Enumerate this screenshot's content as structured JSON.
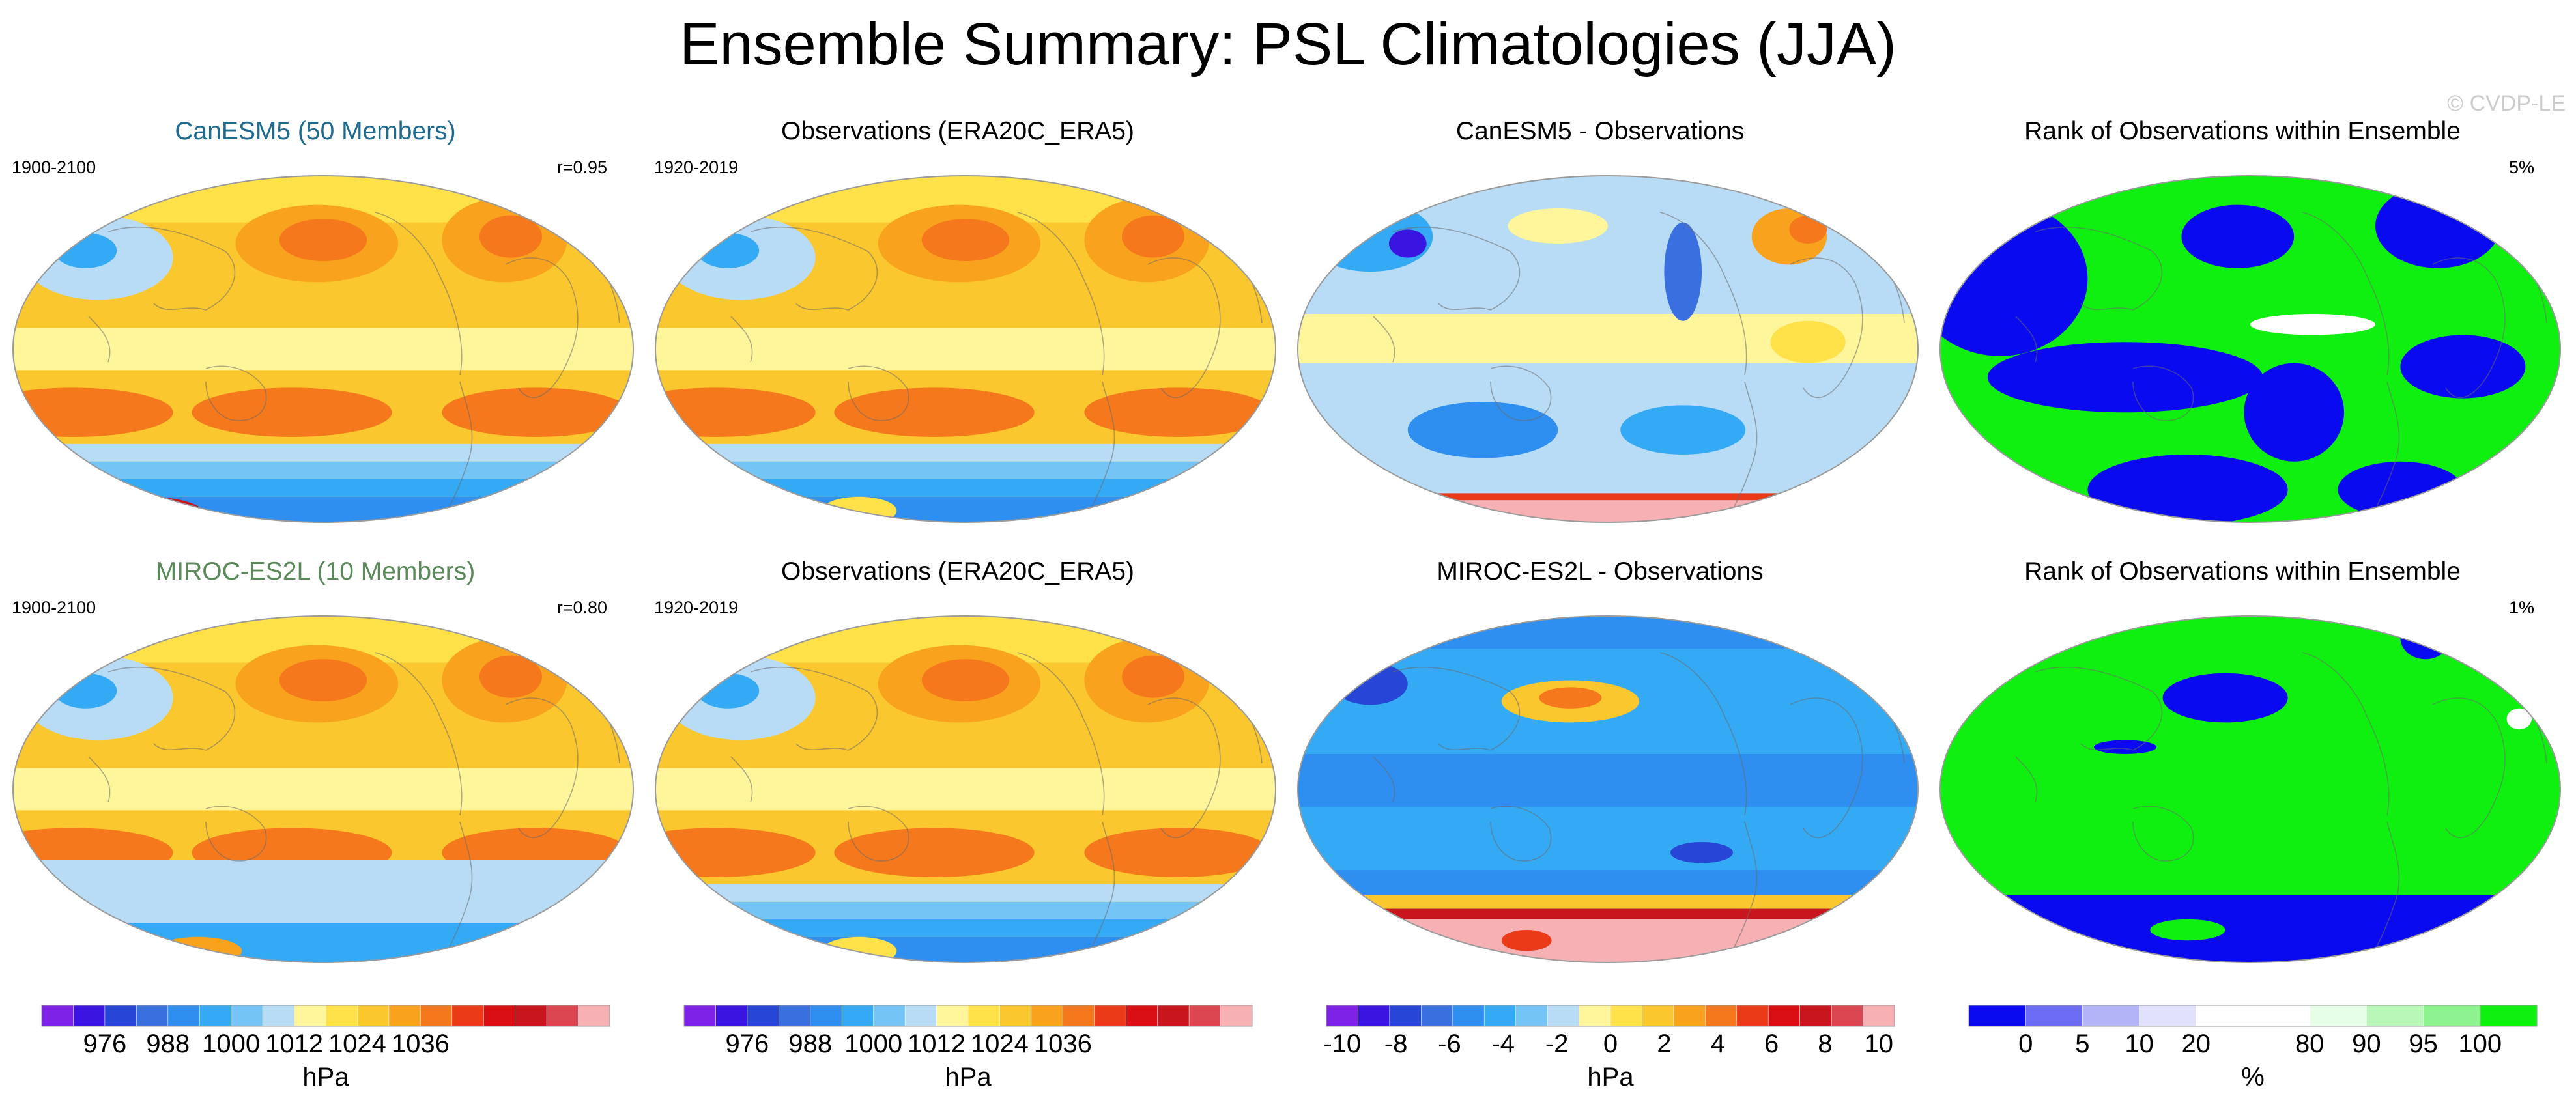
{
  "figure_title": "Ensemble Summary: PSL Climatologies (JJA)",
  "watermark": "© CVDP-LE",
  "colors": {
    "abs": [
      "#7d22e6",
      "#3a14e0",
      "#2846d6",
      "#3a6fe0",
      "#2e8ff0",
      "#34aaf5",
      "#74c4f5",
      "#b8dcf5",
      "#fff59a",
      "#ffe14a",
      "#fbc72e",
      "#f9a21e",
      "#f5781c",
      "#ea3a18",
      "#d90f14",
      "#c8151e",
      "#dc4650",
      "#f7b0b4"
    ],
    "diff": [
      "#7d22e6",
      "#3a14e0",
      "#2846d6",
      "#3a6fe0",
      "#2e8ff0",
      "#34aaf5",
      "#74c4f5",
      "#b8dcf5",
      "#fff59a",
      "#ffe14a",
      "#fbc72e",
      "#f9a21e",
      "#f5781c",
      "#ea3a18",
      "#d90f14",
      "#c8151e",
      "#dc4650",
      "#f7b0b4"
    ],
    "rank": [
      "#0a0af0",
      "#6b6bf5",
      "#b3b3f7",
      "#e1e1fb",
      "#ffffff",
      "#ffffff",
      "#e6fde6",
      "#b9f7b9",
      "#8ef38e",
      "#10f010"
    ]
  },
  "rows": [
    {
      "panels": [
        {
          "title": "CanESM5 (50 Members)",
          "title_color": "#1e6b8f",
          "left": "1900-2100",
          "right": "r=0.95",
          "kind": "model_abs"
        },
        {
          "title": "Observations (ERA20C_ERA5)",
          "title_color": "#000000",
          "left": "1920-2019",
          "right": "",
          "kind": "obs_abs"
        },
        {
          "title": "CanESM5 - Observations",
          "title_color": "#000000",
          "left": "",
          "right": "",
          "kind": "diff_a"
        },
        {
          "title": "Rank of Observations within Ensemble",
          "title_color": "#000000",
          "left": "",
          "right": "5%",
          "kind": "rank_a"
        }
      ]
    },
    {
      "panels": [
        {
          "title": "MIROC-ES2L (10 Members)",
          "title_color": "#5a8a5a",
          "left": "1900-2100",
          "right": "r=0.80",
          "kind": "model_abs2"
        },
        {
          "title": "Observations (ERA20C_ERA5)",
          "title_color": "#000000",
          "left": "1920-2019",
          "right": "",
          "kind": "obs_abs"
        },
        {
          "title": "MIROC-ES2L - Observations",
          "title_color": "#000000",
          "left": "",
          "right": "",
          "kind": "diff_b"
        },
        {
          "title": "Rank of Observations within Ensemble",
          "title_color": "#000000",
          "left": "",
          "right": "1%",
          "kind": "rank_b"
        }
      ]
    }
  ],
  "colorbars": [
    {
      "unit": "hPa",
      "labels": [
        "976",
        "988",
        "1000",
        "1012",
        "1024",
        "1036"
      ],
      "palette": "abs"
    },
    {
      "unit": "hPa",
      "labels": [
        "976",
        "988",
        "1000",
        "1012",
        "1024",
        "1036"
      ],
      "palette": "abs"
    },
    {
      "unit": "hPa",
      "labels": [
        "-10",
        "-8",
        "-6",
        "-4",
        "-2",
        "0",
        "2",
        "4",
        "6",
        "8",
        "10"
      ],
      "palette": "diff"
    },
    {
      "unit": "%",
      "labels": [
        "0",
        "5",
        "10",
        "20",
        "80",
        "90",
        "95",
        "100"
      ],
      "palette": "rank"
    }
  ],
  "chart_data": [
    {
      "type": "heatmap",
      "title": "CanESM5 (50 Members)",
      "period": "1900-2100",
      "pattern_correlation": 0.95,
      "unit": "hPa",
      "levels": [
        976,
        988,
        1000,
        1012,
        1024,
        1036
      ]
    },
    {
      "type": "heatmap",
      "title": "Observations (ERA20C_ERA5)",
      "period": "1920-2019",
      "unit": "hPa",
      "levels": [
        976,
        988,
        1000,
        1012,
        1024,
        1036
      ]
    },
    {
      "type": "heatmap",
      "title": "CanESM5 - Observations",
      "unit": "hPa",
      "levels": [
        -10,
        -8,
        -6,
        -4,
        -2,
        0,
        2,
        4,
        6,
        8,
        10
      ]
    },
    {
      "type": "heatmap",
      "title": "Rank of Observations within Ensemble",
      "unit": "%",
      "area_fraction_label": "5%",
      "levels": [
        0,
        5,
        10,
        20,
        80,
        90,
        95,
        100
      ]
    },
    {
      "type": "heatmap",
      "title": "MIROC-ES2L (10 Members)",
      "period": "1900-2100",
      "pattern_correlation": 0.8,
      "unit": "hPa",
      "levels": [
        976,
        988,
        1000,
        1012,
        1024,
        1036
      ]
    },
    {
      "type": "heatmap",
      "title": "Observations (ERA20C_ERA5)",
      "period": "1920-2019",
      "unit": "hPa",
      "levels": [
        976,
        988,
        1000,
        1012,
        1024,
        1036
      ]
    },
    {
      "type": "heatmap",
      "title": "MIROC-ES2L - Observations",
      "unit": "hPa",
      "levels": [
        -10,
        -8,
        -6,
        -4,
        -2,
        0,
        2,
        4,
        6,
        8,
        10
      ]
    },
    {
      "type": "heatmap",
      "title": "Rank of Observations within Ensemble",
      "unit": "%",
      "area_fraction_label": "1%",
      "levels": [
        0,
        5,
        10,
        20,
        80,
        90,
        95,
        100
      ]
    }
  ]
}
